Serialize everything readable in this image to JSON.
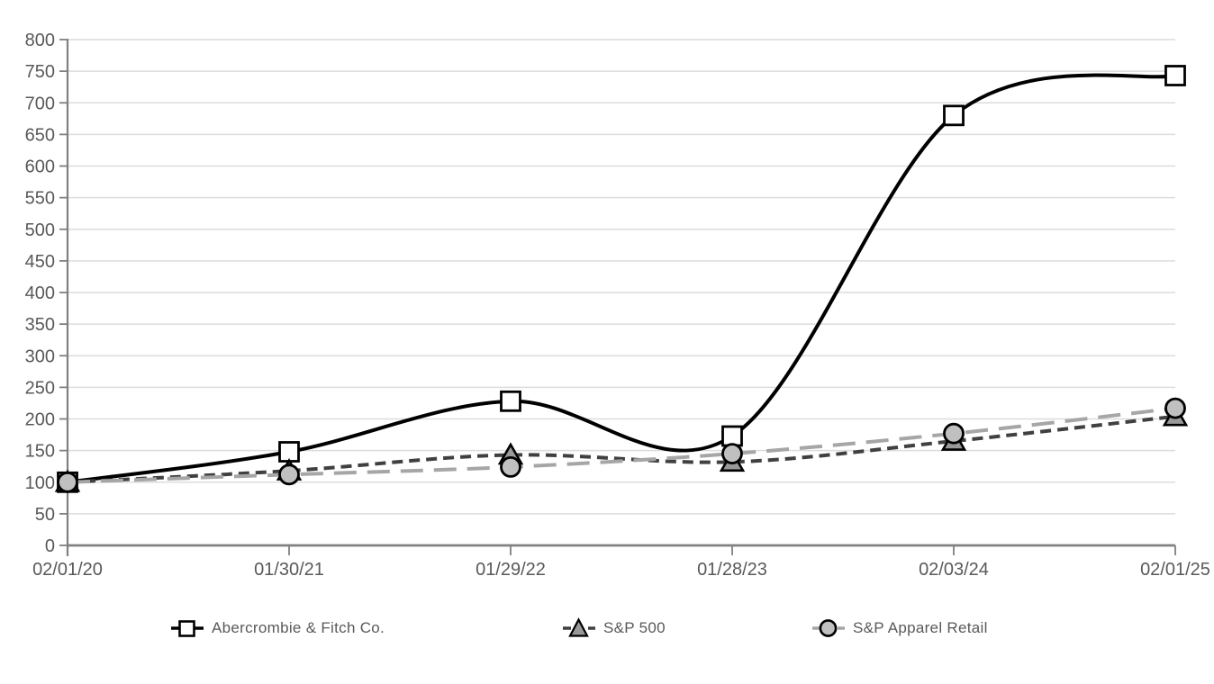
{
  "chart_data": {
    "type": "line",
    "title": "",
    "xlabel": "",
    "ylabel": "",
    "categories": [
      "02/01/20",
      "01/30/21",
      "01/29/22",
      "01/28/23",
      "02/03/24",
      "02/01/25"
    ],
    "series": [
      {
        "name": "Abercrombie & Fitch Co.",
        "values": [
          100,
          148,
          228,
          173,
          680,
          743
        ],
        "color": "#000000",
        "dash": "solid",
        "marker": "square",
        "marker_fill": "#ffffff"
      },
      {
        "name": "S&P 500",
        "values": [
          100,
          118,
          143,
          132,
          165,
          204
        ],
        "color": "#404040",
        "dash": "dashed-short",
        "marker": "triangle",
        "marker_fill": "#999999"
      },
      {
        "name": "S&P Apparel Retail",
        "values": [
          100,
          112,
          124,
          145,
          177,
          217
        ],
        "color": "#a6a6a6",
        "dash": "dashed-long",
        "marker": "circle",
        "marker_fill": "#c0c0c0"
      }
    ],
    "ylim": [
      0,
      800
    ],
    "ytick_step": 50,
    "grid": "horizontal",
    "legend_position": "bottom",
    "colors": {
      "axis": "#808080",
      "grid": "#dcdcdc",
      "tick_label": "#595959",
      "legend_text": "#595959"
    }
  }
}
